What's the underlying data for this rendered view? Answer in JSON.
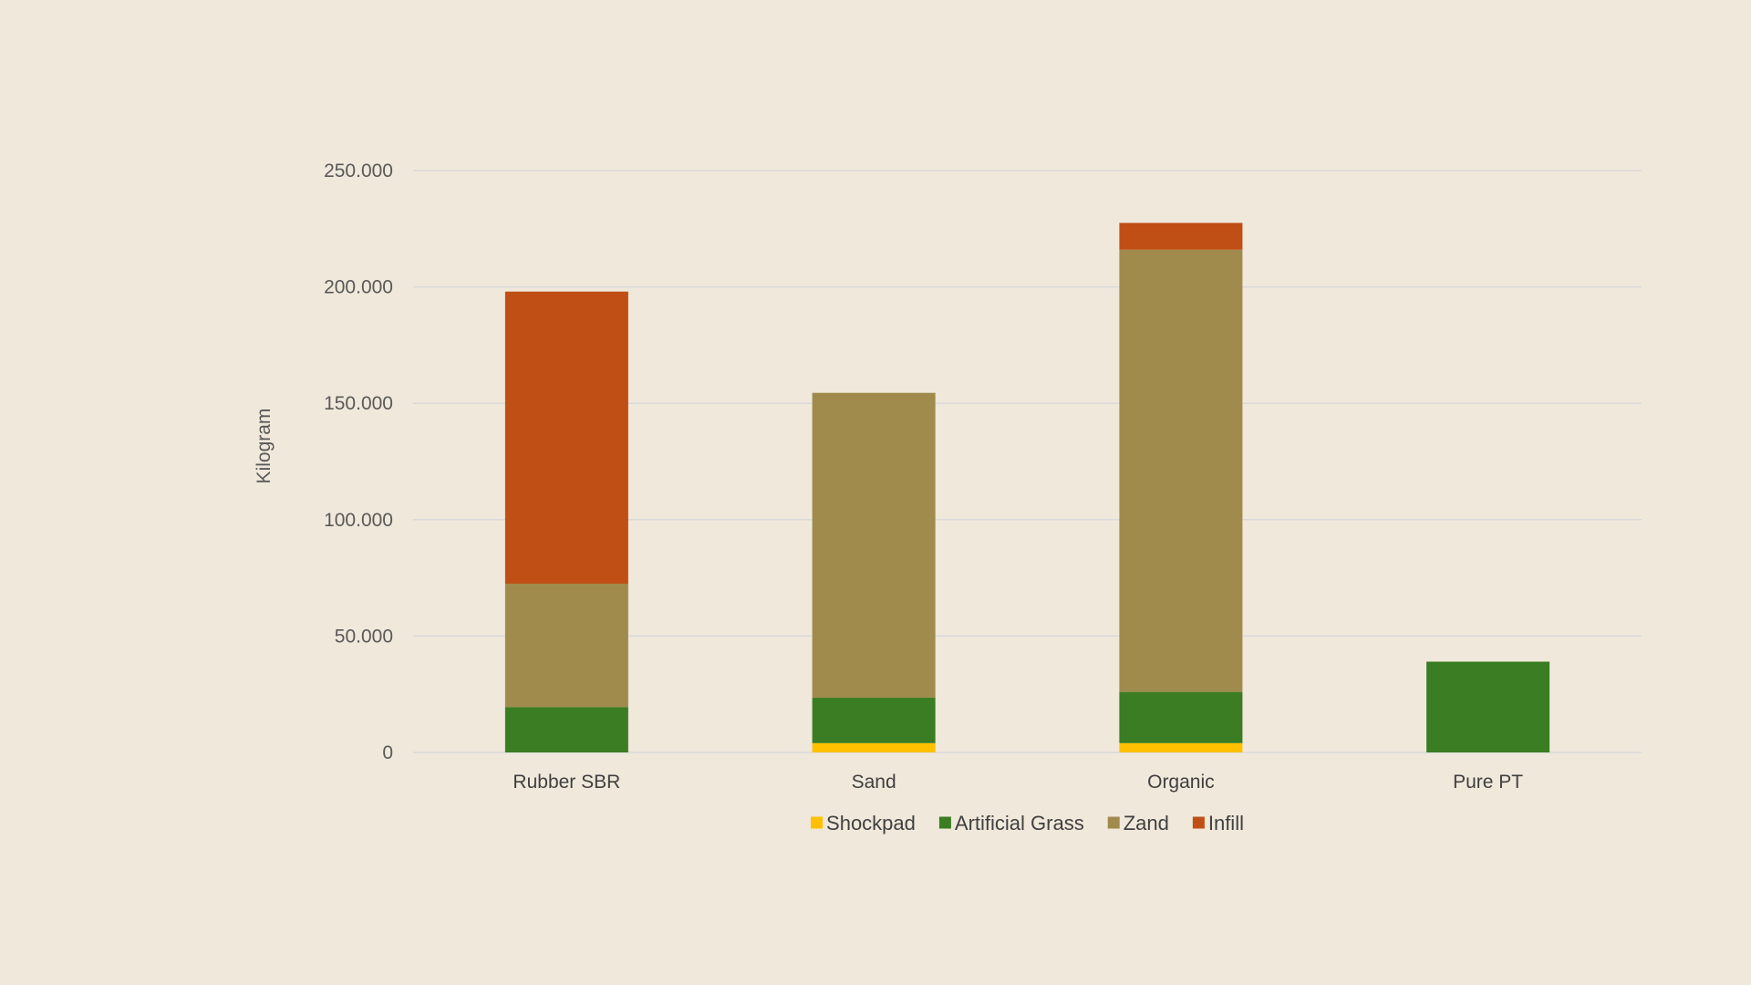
{
  "chart_data": {
    "type": "bar",
    "stacked": true,
    "categories": [
      "Rubber SBR",
      "Sand",
      "Organic",
      "Pure PT"
    ],
    "series": [
      {
        "name": "Shockpad",
        "color": "#FFC000",
        "values": [
          0,
          4000,
          4000,
          0
        ]
      },
      {
        "name": "Artificial Grass",
        "color": "#3A7D22",
        "values": [
          19500,
          19500,
          22000,
          39000
        ]
      },
      {
        "name": "Zand",
        "color": "#A08B4C",
        "values": [
          53000,
          131000,
          190000,
          0
        ]
      },
      {
        "name": "Infill",
        "color": "#C04F15",
        "values": [
          125500,
          0,
          11500,
          0
        ]
      }
    ],
    "ylabel": "Kilogram",
    "ylim": [
      0,
      250000
    ],
    "yticks": [
      0,
      50000,
      100000,
      150000,
      200000,
      250000
    ],
    "ytick_labels": [
      "0",
      "50.000",
      "100.000",
      "150.000",
      "200.000",
      "250.000"
    ],
    "grid": true,
    "legend_position": "bottom"
  }
}
